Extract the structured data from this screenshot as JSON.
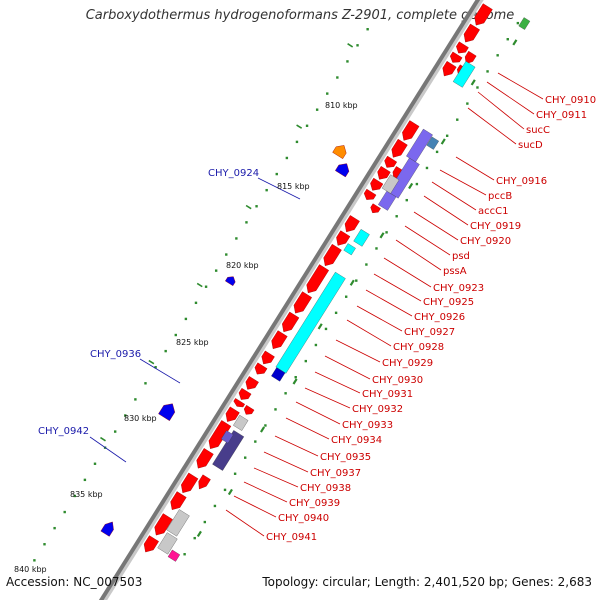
{
  "title": "Carboxydothermus hydrogenoformans Z-2901, complete genome",
  "footer": {
    "accession": "Accession: NC_007503",
    "stats": "Topology: circular; Length: 2,401,520 bp; Genes: 2,683"
  },
  "ticks": [
    "810 kbp",
    "815 kbp",
    "820 kbp",
    "825 kbp",
    "830 kbp",
    "835 kbp",
    "840 kbp"
  ],
  "labels_right": [
    "CHY_0910",
    "CHY_0911",
    "sucC",
    "sucD",
    "CHY_0916",
    "pccB",
    "accC1",
    "CHY_0919",
    "CHY_0920",
    "psd",
    "pssA",
    "CHY_0923",
    "CHY_0925",
    "CHY_0926",
    "CHY_0927",
    "CHY_0928",
    "CHY_0929",
    "CHY_0930",
    "CHY_0931",
    "CHY_0932",
    "CHY_0933",
    "CHY_0934",
    "CHY_0935",
    "CHY_0937",
    "CHY_0938",
    "CHY_0939",
    "CHY_0940",
    "CHY_0941"
  ],
  "labels_left": [
    "CHY_0924",
    "CHY_0936",
    "CHY_0942"
  ],
  "colors": {
    "forward_gene": "#ff0000",
    "reverse_gene": "#0000ee",
    "backbone": "#777777",
    "cyan_feature": "#00ffff",
    "purple_feature": "#7b68ee",
    "dark_purple_feature": "#483d8b",
    "gray_feature": "#c8c8c8",
    "orange_feature": "#ff8c00",
    "pink_feature": "#ff1493",
    "green_marker": "#2e8b2e",
    "label_red": "#cc0000",
    "label_blue": "#1a1aaa"
  }
}
